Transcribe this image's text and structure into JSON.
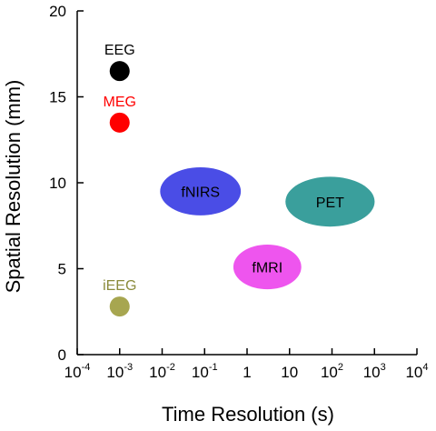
{
  "chart_data": {
    "type": "scatter",
    "title": "",
    "xlabel": "Time Resolution (s)",
    "ylabel": "Spatial Resolution (mm)",
    "xscale": "log",
    "xlim": [
      0.0001,
      10000
    ],
    "ylim": [
      0,
      20
    ],
    "grid": false,
    "x_ticks": [
      {
        "base": "10",
        "exp": "-4"
      },
      {
        "base": "10",
        "exp": "-3"
      },
      {
        "base": "10",
        "exp": "-2"
      },
      {
        "base": "10",
        "exp": "-1"
      },
      {
        "base": "1",
        "exp": ""
      },
      {
        "base": "10",
        "exp": ""
      },
      {
        "base": "10",
        "exp": "2"
      },
      {
        "base": "10",
        "exp": "3"
      },
      {
        "base": "10",
        "exp": "4"
      }
    ],
    "y_ticks": [
      "0",
      "5",
      "10",
      "15",
      "20"
    ],
    "points": [
      {
        "label": "EEG",
        "x": 0.001,
        "y": 16.5,
        "color": "#000000",
        "label_color": "#000000"
      },
      {
        "label": "MEG",
        "x": 0.001,
        "y": 13.5,
        "color": "#ff0000",
        "label_color": "#ff0000"
      },
      {
        "label": "iEEG",
        "x": 0.001,
        "y": 2.8,
        "color": "#a7a650",
        "label_color": "#8a8a3a"
      }
    ],
    "regions": [
      {
        "label": "fNIRS",
        "x": 0.08,
        "y": 9.5,
        "color": "#4a4de6",
        "x_span_decades": 1.9,
        "y_span": 2.8
      },
      {
        "label": "PET",
        "x": 90,
        "y": 8.9,
        "color": "#3a9f9c",
        "x_span_decades": 2.1,
        "y_span": 2.9
      },
      {
        "label": "fMRI",
        "x": 3,
        "y": 5.1,
        "color": "#ee55ee",
        "x_span_decades": 1.6,
        "y_span": 2.6
      }
    ]
  }
}
